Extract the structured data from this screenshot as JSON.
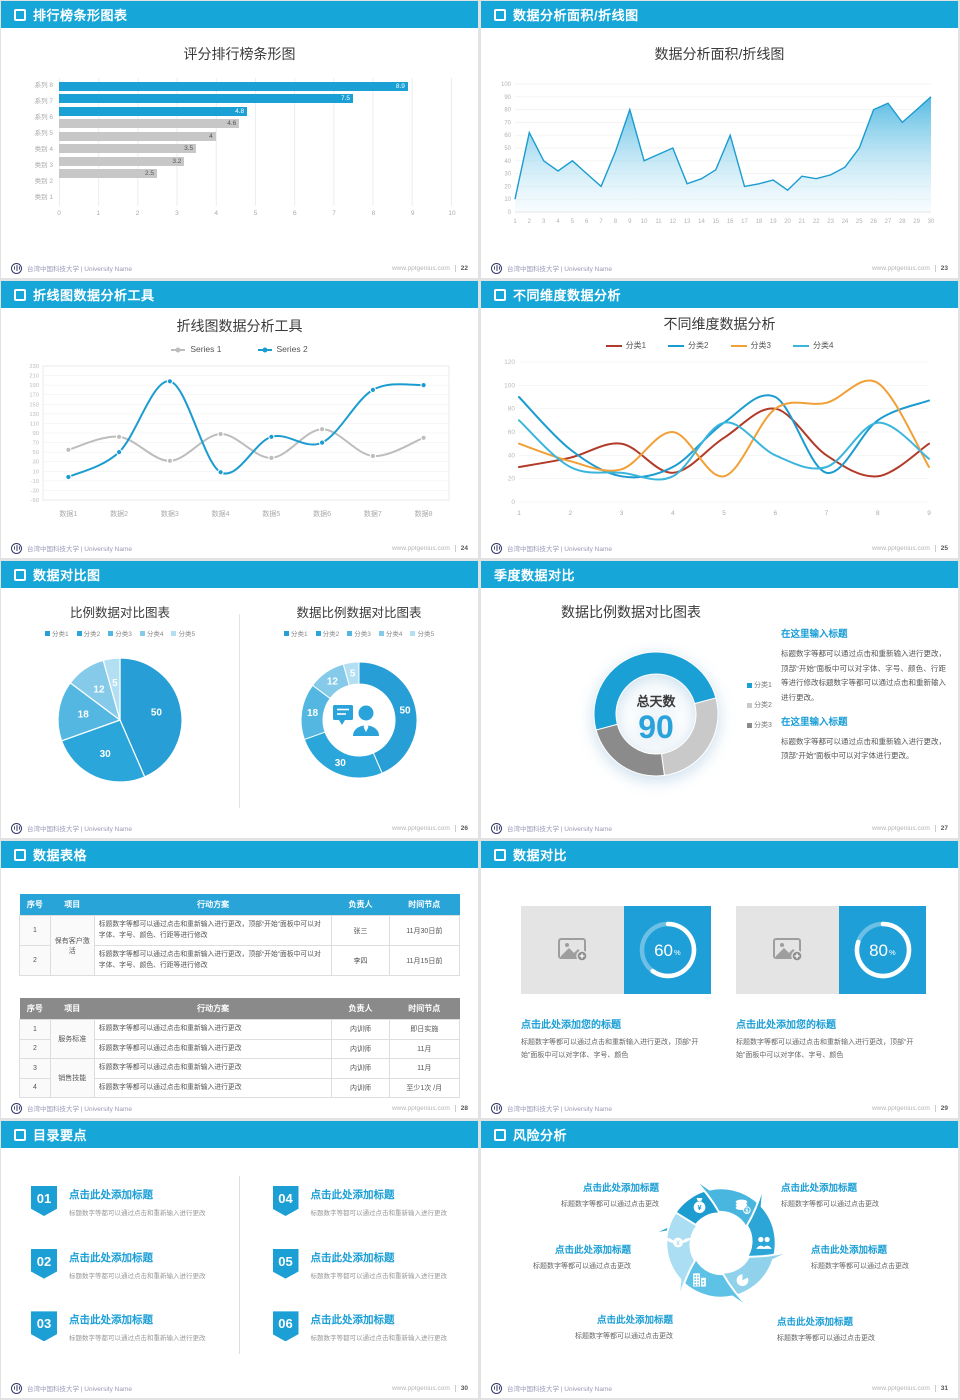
{
  "footer": {
    "org": "台湾中国科技大学 | University Name",
    "site": "www.pptgenius.com"
  },
  "slides": {
    "ranking": {
      "header": "排行榜条形图表",
      "page": "22",
      "icon": true
    },
    "area": {
      "header": "数据分析面积/折线图",
      "page": "23",
      "icon": true
    },
    "line_tool": {
      "header": "折线图数据分析工具",
      "page": "24",
      "icon": true
    },
    "dimension": {
      "header": "不同维度数据分析",
      "page": "25",
      "icon": true
    },
    "pie_compare": {
      "header": "数据对比图",
      "page": "26",
      "icon": true
    },
    "quarter": {
      "header": "季度数据对比",
      "page": "27",
      "icon": false
    },
    "table": {
      "header": "数据表格",
      "page": "28",
      "icon": true
    },
    "compare_cards": {
      "header": "数据对比",
      "page": "29",
      "icon": true
    },
    "toc": {
      "header": "目录要点",
      "page": "30",
      "icon": true
    },
    "risk": {
      "header": "风险分析",
      "page": "31",
      "icon": true
    }
  },
  "chart_data": [
    {
      "slide": "ranking",
      "type": "bar",
      "orientation": "horizontal",
      "title": "评分排行榜条形图",
      "categories": [
        "系列 8",
        "系列 7",
        "系列 6",
        "系列 5",
        "类别 4",
        "类别 3",
        "类别 2",
        "类别 1"
      ],
      "values": [
        8.9,
        7.5,
        4.8,
        4.6,
        4,
        3.5,
        3.2,
        2.5
      ],
      "colors": [
        "#1ba0d6",
        "#1ba0d6",
        "#1ba0d6",
        "#c7c7c7",
        "#c7c7c7",
        "#c7c7c7",
        "#c7c7c7",
        "#c7c7c7"
      ],
      "xlim": [
        0,
        10
      ],
      "xtick": 1,
      "grid": true
    },
    {
      "slide": "area",
      "type": "area",
      "title": "数据分析面积/折线图",
      "x": [
        1,
        2,
        3,
        4,
        5,
        6,
        7,
        8,
        9,
        10,
        11,
        12,
        13,
        14,
        15,
        16,
        17,
        18,
        19,
        20,
        21,
        22,
        23,
        24,
        25,
        26,
        27,
        28,
        29,
        30
      ],
      "values": [
        10,
        62,
        40,
        32,
        40,
        30,
        20,
        47,
        80,
        40,
        45,
        50,
        22,
        26,
        33,
        60,
        20,
        22,
        25,
        17,
        28,
        26,
        29,
        35,
        50,
        80,
        85,
        70,
        80,
        90
      ],
      "ylim": [
        0,
        100
      ],
      "ytick": 10,
      "line_color": "#1b9cd0",
      "grid": true
    },
    {
      "slide": "line_tool",
      "type": "line",
      "title": "折线图数据分析工具",
      "categories": [
        "数据1",
        "数据2",
        "数据3",
        "数据4",
        "数据5",
        "数据6",
        "数据7",
        "数据8"
      ],
      "series": [
        {
          "name": "Series 1",
          "color": "#bdbdbd",
          "values": [
            55,
            82,
            32,
            88,
            38,
            98,
            42,
            80
          ]
        },
        {
          "name": "Series 2",
          "color": "#1b9cd0",
          "values": [
            -2,
            50,
            198,
            8,
            82,
            70,
            180,
            190
          ]
        }
      ],
      "ylim": [
        -50,
        230
      ],
      "ytick": 20,
      "legend_position": "top",
      "grid": true
    },
    {
      "slide": "dimension",
      "type": "line",
      "title": "不同维度数据分析",
      "x": [
        1,
        2,
        3,
        4,
        5,
        6,
        7,
        8,
        9
      ],
      "series": [
        {
          "name": "分类1",
          "color": "#b23a28",
          "values": [
            30,
            38,
            50,
            25,
            55,
            80,
            40,
            22,
            50
          ]
        },
        {
          "name": "分类2",
          "color": "#1b9cd0",
          "values": [
            90,
            45,
            22,
            30,
            68,
            90,
            25,
            70,
            87
          ]
        },
        {
          "name": "分类3",
          "color": "#f0a036",
          "values": [
            50,
            35,
            28,
            60,
            22,
            80,
            85,
            102,
            30
          ]
        },
        {
          "name": "分类4",
          "color": "#3ab5dc",
          "values": [
            70,
            30,
            25,
            22,
            68,
            40,
            30,
            68,
            37
          ]
        }
      ],
      "ylim": [
        0,
        120
      ],
      "ytick": 20,
      "legend_position": "top",
      "grid": true
    },
    {
      "slide": "pie_compare_left",
      "type": "pie",
      "title": "比例数据对比图表",
      "labels": [
        "分类1",
        "分类2",
        "分类3",
        "分类4",
        "分类5"
      ],
      "values": [
        50,
        30,
        18,
        12,
        5
      ],
      "colors": [
        "#279fd6",
        "#2ba6da",
        "#54b7e2",
        "#85cbe9",
        "#b2dff2"
      ]
    },
    {
      "slide": "pie_compare_right",
      "type": "donut",
      "title": "数据比例数据对比图表",
      "labels": [
        "分类1",
        "分类2",
        "分类3",
        "分类4",
        "分类5"
      ],
      "values": [
        50,
        30,
        18,
        12,
        5
      ],
      "colors": [
        "#279fd6",
        "#2ba6da",
        "#54b7e2",
        "#85cbe9",
        "#b2dff2"
      ],
      "center_icon": "consultant-icon"
    },
    {
      "slide": "quarter",
      "type": "donut",
      "title": "数据比例数据对比图表",
      "labels": [
        "分类1",
        "分类2",
        "分类3"
      ],
      "values": [
        50,
        27,
        23
      ],
      "colors": [
        "#1ba0d6",
        "#c9c9c9",
        "#8b8b8b"
      ],
      "start_angle": 255,
      "center_label": "总天数",
      "center_value": "90"
    },
    {
      "slide": "compare_cards",
      "type": "progress_rings",
      "values": [
        60,
        80
      ],
      "unit": "%"
    }
  ],
  "quarter_text": {
    "h1": "在这里输入标题",
    "p1": "标题数字等都可以通过点击和重新输入进行更改，顶部“开始”面板中可以对字体、字号、颜色、行距等进行修改标题数字等都可以通过点击和重新输入进行更改。",
    "h2": "在这里输入标题",
    "p2": "标题数字等都可以通过点击和重新输入进行更改，顶部“开始”面板中可以对字体进行更改。"
  },
  "tables": {
    "columns": [
      "序号",
      "项目",
      "行动方案",
      "负责人",
      "时间节点"
    ],
    "t1": {
      "theme": "blue",
      "rows": [
        {
          "no": "1",
          "item": "保有客户激活",
          "item_span": 2,
          "plan": "标题数字等都可以通过点击和重新输入进行更改，顶部“开始”面板中可以对字体、字号、颜色、行距等进行修改",
          "owner": "张三",
          "due": "11月30日前"
        },
        {
          "no": "2",
          "plan": "标题数字等都可以通过点击和重新输入进行更改，顶部“开始”面板中可以对字体、字号、颜色、行距等进行修改",
          "owner": "李四",
          "due": "11月15日前"
        }
      ]
    },
    "t2": {
      "theme": "gray",
      "rows": [
        {
          "no": "1",
          "item": "服务标准",
          "item_span": 2,
          "plan": "标题数字等都可以通过点击和重新输入进行更改",
          "owner": "内训师",
          "due": "即日实施"
        },
        {
          "no": "2",
          "plan": "标题数字等都可以通过点击和重新输入进行更改",
          "owner": "内训师",
          "due": "11月"
        },
        {
          "no": "3",
          "item": "销售技能",
          "item_span": 2,
          "plan": "标题数字等都可以通过点击和重新输入进行更改",
          "owner": "内训师",
          "due": "11月"
        },
        {
          "no": "4",
          "plan": "标题数字等都可以通过点击和重新输入进行更改",
          "owner": "内训师",
          "due": "至少1次 /月"
        }
      ]
    }
  },
  "cards": {
    "title": "点击此处添加您的标题",
    "body": "标题数字等都可以通过点击和重新输入进行更改，顶部“开始”面板中可以对字体、字号、颜色"
  },
  "toc": {
    "items": [
      {
        "num": "01",
        "title": "点击此处添加标题",
        "sub": "标题数字等都可以通过点击和重新输入进行更改"
      },
      {
        "num": "02",
        "title": "点击此处添加标题",
        "sub": "标题数字等都可以通过点击和重新输入进行更改"
      },
      {
        "num": "03",
        "title": "点击此处添加标题",
        "sub": "标题数字等都可以通过点击和重新输入进行更改"
      },
      {
        "num": "04",
        "title": "点击此处添加标题",
        "sub": "标题数字等都可以通过点击和重新输入进行更改"
      },
      {
        "num": "05",
        "title": "点击此处添加标题",
        "sub": "标题数字等都可以通过点击和重新输入进行更改"
      },
      {
        "num": "06",
        "title": "点击此处添加标题",
        "sub": "标题数字等都可以通过点击和重新输入进行更改"
      }
    ]
  },
  "risk": {
    "items": [
      {
        "title": "点击此处添加标题",
        "caption": "标题数字等都可以通过点击更改"
      },
      {
        "title": "点击此处添加标题",
        "caption": "标题数字等都可以通过点击更改"
      },
      {
        "title": "点击此处添加标题",
        "caption": "标题数字等都可以通过点击更改"
      },
      {
        "title": "点击此处添加标题",
        "caption": "标题数字等都可以通过点击更改"
      },
      {
        "title": "点击此处添加标题",
        "caption": "标题数字等都可以通过点击更改"
      },
      {
        "title": "点击此处添加标题",
        "caption": "标题数字等都可以通过点击更改"
      }
    ],
    "wheel": {
      "icons": [
        "money-bag-icon",
        "coins-icon",
        "people-group-icon",
        "pie-chart-icon",
        "building-icon",
        "winged-money-icon"
      ],
      "colors": [
        "#1d9ccf",
        "#49b6e0",
        "#2ba6d6",
        "#90d2ec",
        "#5ec2e6",
        "#abdef2"
      ]
    }
  }
}
